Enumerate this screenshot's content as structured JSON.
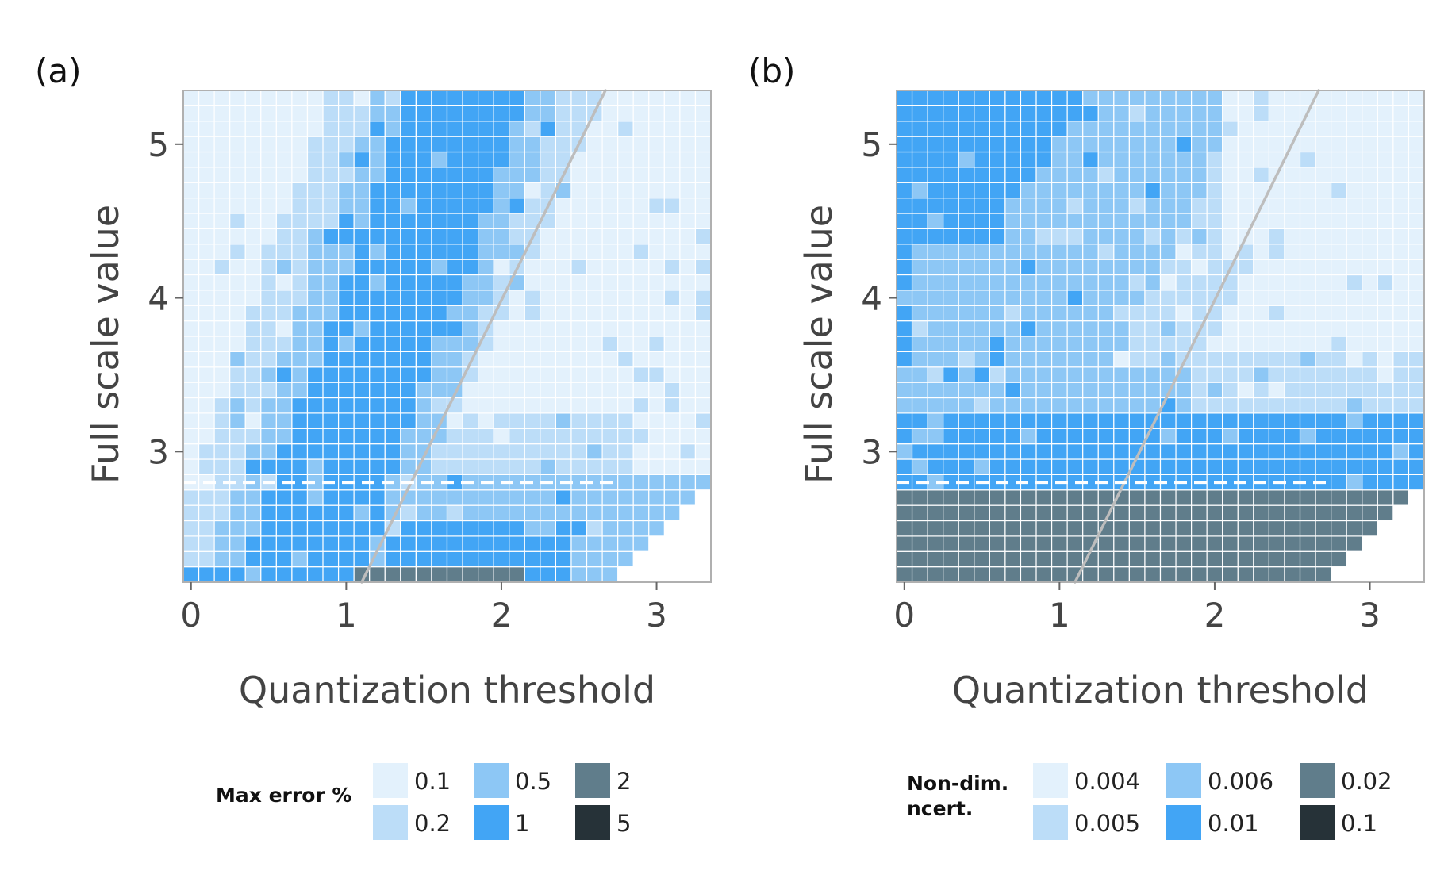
{
  "chart_data": [
    {
      "type": "heatmap",
      "panel_label": "(a)",
      "xlabel": "Quantization threshold",
      "ylabel": "Full scale value",
      "xlim": [
        -0.05,
        3.35
      ],
      "ylim": [
        2.15,
        5.35
      ],
      "xticks": [
        "0",
        "1",
        "2",
        "3"
      ],
      "yticks": [
        "3",
        "4",
        "5"
      ],
      "grid_step_x": 0.1,
      "grid_step_y": 0.1,
      "legend": {
        "title": "Max error %",
        "entries": [
          {
            "label": "0.1",
            "color": "#E3F1FC"
          },
          {
            "label": "0.2",
            "color": "#BCDDF8"
          },
          {
            "label": "0.5",
            "color": "#8DC7F5"
          },
          {
            "label": "1",
            "color": "#42A5F5"
          },
          {
            "label": "2",
            "color": "#607D8B"
          },
          {
            "label": "5",
            "color": "#263238"
          }
        ]
      },
      "reference_line": {
        "x1": 1.1,
        "y1": 2.15,
        "x2": 2.67,
        "y2": 5.35,
        "color": "#BDBDBD"
      },
      "dashed_line": {
        "y": 2.8,
        "x_start": -0.05,
        "x_end": 2.75,
        "color": "#FFFFFF"
      }
    },
    {
      "type": "heatmap",
      "panel_label": "(b)",
      "xlabel": "Quantization threshold",
      "ylabel": "Full scale value",
      "xlim": [
        -0.05,
        3.35
      ],
      "ylim": [
        2.15,
        5.35
      ],
      "xticks": [
        "0",
        "1",
        "2",
        "3"
      ],
      "yticks": [
        "3",
        "4",
        "5"
      ],
      "grid_step_x": 0.1,
      "grid_step_y": 0.1,
      "legend": {
        "title": "Non-dim. uncert.",
        "entries": [
          {
            "label": "0.004",
            "color": "#E3F1FC"
          },
          {
            "label": "0.005",
            "color": "#BCDDF8"
          },
          {
            "label": "0.006",
            "color": "#8DC7F5"
          },
          {
            "label": "0.01",
            "color": "#42A5F5"
          },
          {
            "label": "0.02",
            "color": "#607D8B"
          },
          {
            "label": "0.1",
            "color": "#263238"
          }
        ]
      },
      "reference_line": {
        "x1": 1.1,
        "y1": 2.15,
        "x2": 2.67,
        "y2": 5.35,
        "color": "#BDBDBD"
      },
      "dashed_line": {
        "y": 2.8,
        "x_start": -0.05,
        "x_end": 2.75,
        "color": "#FFFFFF"
      }
    }
  ]
}
